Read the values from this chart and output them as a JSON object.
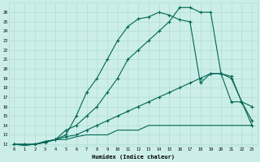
{
  "xlabel": "Humidex (Indice chaleur)",
  "bg_color": "#cceee8",
  "grid_color": "#b0ddd5",
  "line_color": "#006655",
  "x_ticks": [
    0,
    1,
    2,
    3,
    4,
    5,
    6,
    7,
    8,
    9,
    10,
    11,
    12,
    13,
    14,
    15,
    16,
    17,
    18,
    19,
    20,
    21,
    22,
    23
  ],
  "ylim": [
    11.8,
    27.0
  ],
  "xlim": [
    -0.5,
    23.5
  ],
  "y_ticks": [
    12,
    13,
    14,
    15,
    16,
    17,
    18,
    19,
    20,
    21,
    22,
    23,
    24,
    25,
    26
  ],
  "line1": [
    12,
    11.9,
    12,
    12.3,
    12.5,
    13,
    15,
    17.5,
    19,
    21,
    23,
    24.5,
    25.3,
    25.5,
    26,
    25.7,
    25.2,
    25,
    18.5,
    19.5,
    19.5,
    19,
    16.5,
    16
  ],
  "line2": [
    12,
    11.9,
    12,
    12.3,
    12.5,
    13.5,
    14,
    15,
    16,
    17.5,
    19,
    21,
    22,
    23,
    24,
    25,
    26.5,
    26.5,
    26,
    26,
    19.5,
    16.5,
    16.5,
    14
  ],
  "line3": [
    12,
    12,
    12,
    12.2,
    12.5,
    12.5,
    12.8,
    13,
    13,
    13,
    13.5,
    13.5,
    13.5,
    14,
    14,
    14,
    14,
    14,
    14,
    14,
    14,
    14,
    14,
    14
  ],
  "line4": [
    12,
    12,
    12,
    12.2,
    12.5,
    12.8,
    13,
    13.5,
    14,
    14.5,
    15,
    15.5,
    16,
    16.5,
    17,
    17.5,
    18,
    18.5,
    19,
    19.5,
    19.5,
    19.2,
    16.5,
    14.5
  ]
}
